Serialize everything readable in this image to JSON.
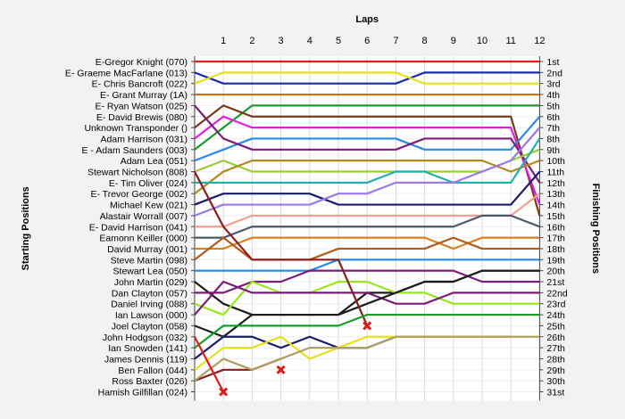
{
  "chart_data": {
    "type": "line",
    "title": "Laps",
    "ylabel_left": "Starting Positions",
    "ylabel_right": "Finishing Positions",
    "x": [
      0,
      1,
      2,
      3,
      4,
      5,
      6,
      7,
      8,
      9,
      10,
      11,
      12
    ],
    "x_ticks": [
      "1",
      "2",
      "3",
      "4",
      "5",
      "6",
      "7",
      "8",
      "9",
      "10",
      "11",
      "12"
    ],
    "start_labels": [
      "E-Gregor Knight (070)",
      "E- Graeme MacFarlane (013)",
      "E- Chris Bancroft (022)",
      "E- Grant Murray (1A)",
      "E- Ryan Watson (025)",
      "E- David Brewis (080)",
      "Unknown Transponder ()",
      "Adam Harrison (031)",
      "E - Adam Saunders (003)",
      "Adam Lea (051)",
      "Stewart Nicholson (808)",
      "E- Tim Oliver (024)",
      "E- Trevor George (002)",
      "Michael Kew (021)",
      "Alastair Worrall (007)",
      "E- David Harrison (041)",
      "Eamonn Keiller (000)",
      "David Murray (001)",
      "Steve Martin (098)",
      "Stewart Lea (050)",
      "John Martin (029)",
      "Dan Clayton (057)",
      "Daniel Irving (088)",
      "Ian Lawson (000)",
      "Joel Clayton (058)",
      "John Hodgson (032)",
      "Ian Snowden (141)",
      "James Dennis (119)",
      "Ben Fallon (044)",
      "Ross Baxter (026)",
      "Hamish Gilfillan (024)"
    ],
    "finish_labels": [
      "1st",
      "2nd",
      "3rd",
      "4th",
      "5th",
      "6th",
      "7th",
      "8th",
      "9th",
      "10th",
      "11th",
      "12th",
      "13th",
      "14th",
      "15th",
      "16th",
      "17th",
      "18th",
      "19th",
      "20th",
      "21st",
      "22nd",
      "23rd",
      "24th",
      "25th",
      "26th",
      "27th",
      "28th",
      "29th",
      "30th",
      "31st"
    ],
    "series": [
      {
        "color": "#dd1c1c",
        "positions": [
          1,
          1,
          1,
          1,
          1,
          1,
          1,
          1,
          1,
          1,
          1,
          1,
          1
        ]
      },
      {
        "color": "#1c2aa8",
        "positions": [
          2,
          3,
          3,
          3,
          3,
          3,
          3,
          3,
          2,
          2,
          2,
          2,
          2
        ]
      },
      {
        "color": "#e6e21a",
        "positions": [
          3,
          2,
          2,
          2,
          2,
          2,
          2,
          2,
          3,
          3,
          3,
          3,
          3
        ]
      },
      {
        "color": "#c87018",
        "positions": [
          4,
          4,
          4,
          4,
          4,
          4,
          4,
          4,
          4,
          4,
          4,
          4,
          4
        ]
      },
      {
        "color": "#1c9a2a",
        "positions": [
          9,
          7,
          5,
          5,
          5,
          5,
          5,
          5,
          5,
          5,
          5,
          5,
          5
        ]
      },
      {
        "color": "#7a3a18",
        "positions": [
          7,
          5,
          6,
          6,
          6,
          6,
          6,
          6,
          6,
          6,
          6,
          6,
          15
        ]
      },
      {
        "color": "#e61ce6",
        "positions": [
          8,
          6,
          7,
          7,
          7,
          7,
          7,
          7,
          7,
          7,
          7,
          7,
          14
        ]
      },
      {
        "color": "#2a8ae6",
        "positions": [
          10,
          9,
          8,
          8,
          8,
          8,
          8,
          8,
          9,
          9,
          9,
          9,
          6
        ]
      },
      {
        "color": "#7a1c7a",
        "positions": [
          5,
          8,
          9,
          9,
          9,
          9,
          9,
          9,
          8,
          8,
          8,
          8,
          12
        ]
      },
      {
        "color": "#9acd32",
        "positions": [
          11,
          10,
          11,
          11,
          11,
          11,
          11,
          11,
          11,
          11,
          11,
          10,
          9
        ]
      },
      {
        "color": "#b08a18",
        "positions": [
          13,
          11,
          10,
          10,
          10,
          10,
          10,
          10,
          10,
          10,
          10,
          11,
          10
        ]
      },
      {
        "color": "#20b2aa",
        "positions": [
          12,
          12,
          12,
          12,
          12,
          12,
          12,
          11,
          11,
          12,
          12,
          12,
          8
        ]
      },
      {
        "color": "#1c1c6a",
        "positions": [
          14,
          13,
          13,
          13,
          13,
          14,
          14,
          14,
          14,
          14,
          14,
          14,
          11
        ]
      },
      {
        "color": "#9a7ae6",
        "positions": [
          15,
          14,
          14,
          14,
          14,
          13,
          13,
          12,
          12,
          12,
          11,
          10,
          7
        ]
      },
      {
        "color": "#f0a090",
        "positions": [
          16,
          16,
          15,
          15,
          15,
          15,
          15,
          15,
          15,
          15,
          15,
          15,
          13
        ]
      },
      {
        "color": "#4a5a6a",
        "positions": [
          17,
          17,
          16,
          16,
          16,
          16,
          16,
          16,
          16,
          16,
          15,
          15,
          16
        ]
      },
      {
        "color": "#d8801c",
        "positions": [
          18,
          18,
          17,
          17,
          17,
          17,
          17,
          17,
          17,
          18,
          17,
          17,
          17
        ]
      },
      {
        "color": "#b05a1c",
        "positions": [
          19,
          17,
          19,
          19,
          19,
          18,
          18,
          18,
          18,
          17,
          18,
          18,
          18
        ]
      },
      {
        "color": "#2a8ae6",
        "positions": [
          20,
          20,
          20,
          20,
          20,
          19,
          19,
          19,
          19,
          19,
          19,
          19,
          19
        ]
      },
      {
        "color": "#1c1c1c",
        "positions": [
          21,
          23,
          24,
          24,
          24,
          24,
          22,
          22,
          21,
          21,
          20,
          20,
          20
        ]
      },
      {
        "color": "#7a1c7a",
        "positions": [
          22,
          22,
          21,
          21,
          20,
          20,
          20,
          20,
          20,
          20,
          21,
          21,
          21
        ]
      },
      {
        "color": "#9ae61c",
        "positions": [
          23,
          24,
          21,
          22,
          22,
          21,
          21,
          22,
          22,
          23,
          23,
          23,
          23
        ]
      },
      {
        "color": "#7a1c7a",
        "positions": [
          24,
          21,
          22,
          22,
          22,
          22,
          22,
          23,
          23,
          22,
          22,
          22,
          22
        ]
      },
      {
        "color": "#1c1c1c",
        "positions": [
          25,
          26,
          24,
          24,
          24,
          24,
          23,
          22,
          21,
          21,
          20,
          20,
          20
        ]
      },
      {
        "color": "#8a1c1c",
        "positions": [
          11,
          16,
          19,
          19,
          19,
          19,
          25
        ]
      },
      {
        "color": "#1c9a2a",
        "positions": [
          27,
          25,
          25,
          25,
          25,
          25,
          24,
          24,
          24,
          24,
          24,
          24,
          24
        ]
      },
      {
        "color": "#1c1c6a",
        "positions": [
          28,
          26,
          26,
          27,
          26,
          27,
          27,
          26,
          26,
          26,
          26,
          26
        ]
      },
      {
        "color": "#e6e21a",
        "positions": [
          29,
          27,
          27,
          26,
          28,
          27,
          26,
          26,
          26,
          26,
          26,
          26
        ]
      },
      {
        "color": "#8a1c1c",
        "positions": [
          30,
          29,
          29,
          28
        ]
      },
      {
        "color": "#b0a060",
        "positions": [
          30,
          28,
          29,
          28,
          27,
          27,
          27,
          26,
          26,
          26,
          26,
          26,
          26
        ]
      },
      {
        "color": "#dd1c1c",
        "positions": [
          26,
          31
        ]
      }
    ],
    "retired": [
      {
        "color": "#dd1c1c",
        "lap": 6,
        "position": 25
      },
      {
        "color": "#dd1c1c",
        "lap": 3,
        "position": 29
      },
      {
        "color": "#dd1c1c",
        "lap": 1,
        "position": 31
      }
    ],
    "xlim": [
      0,
      12
    ],
    "ylim": [
      1,
      31
    ],
    "grid": true
  }
}
